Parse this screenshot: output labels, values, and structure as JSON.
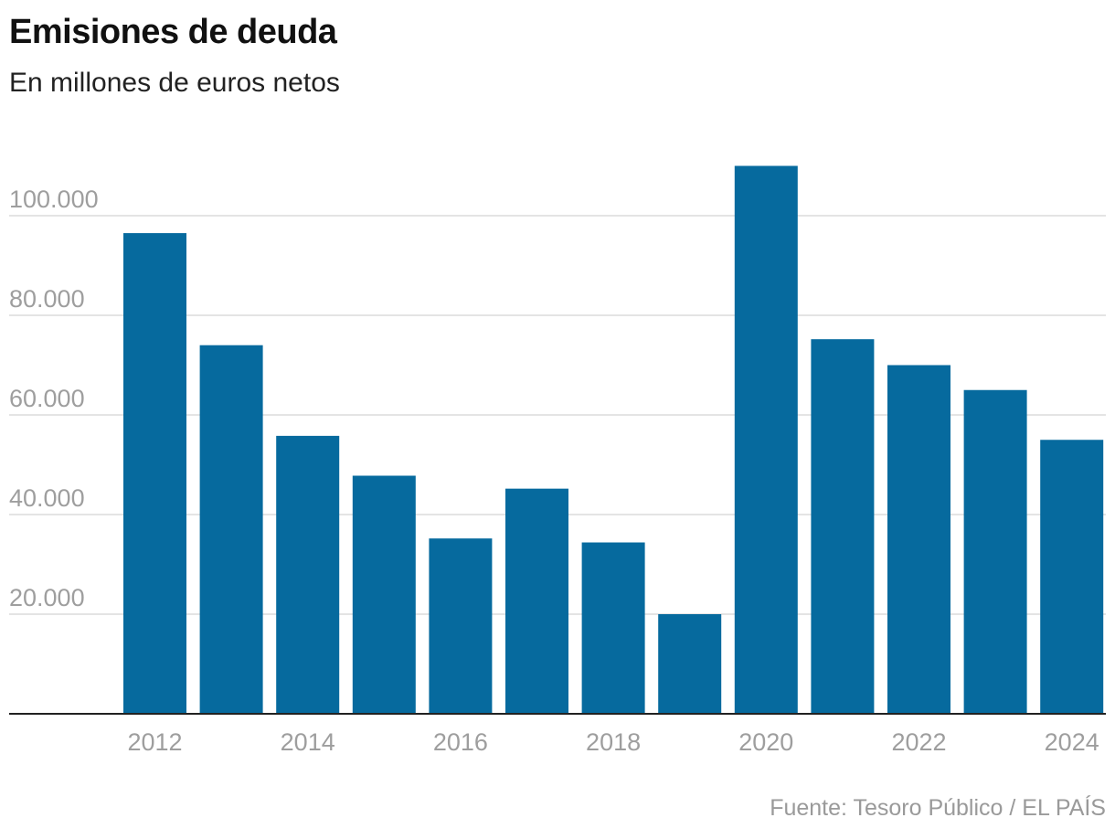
{
  "chart_data": {
    "type": "bar",
    "title": "Emisiones de deuda",
    "subtitle": "En millones de euros netos",
    "source": "Fuente: Tesoro Público / EL PAÍS",
    "categories": [
      "2012",
      "2013",
      "2014",
      "2015",
      "2016",
      "2017",
      "2018",
      "2019",
      "2020",
      "2021",
      "2022",
      "2023",
      "2024"
    ],
    "values": [
      96500,
      74000,
      55800,
      47800,
      35200,
      45200,
      34400,
      20000,
      110000,
      75200,
      70000,
      65000,
      55000
    ],
    "x_tick_labels": [
      "2012",
      "",
      "2014",
      "",
      "2016",
      "",
      "2018",
      "",
      "2020",
      "",
      "2022",
      "",
      "2024"
    ],
    "y_ticks": [
      20000,
      40000,
      60000,
      80000,
      100000
    ],
    "y_tick_labels": [
      "20.000",
      "40.000",
      "60.000",
      "80.000",
      "100.000"
    ],
    "ylim": [
      0,
      110000
    ],
    "xlabel": "",
    "ylabel": "",
    "grid": true,
    "bar_color": "#066a9e",
    "grid_color": "#dcdcdc",
    "axis_color": "#222222"
  }
}
